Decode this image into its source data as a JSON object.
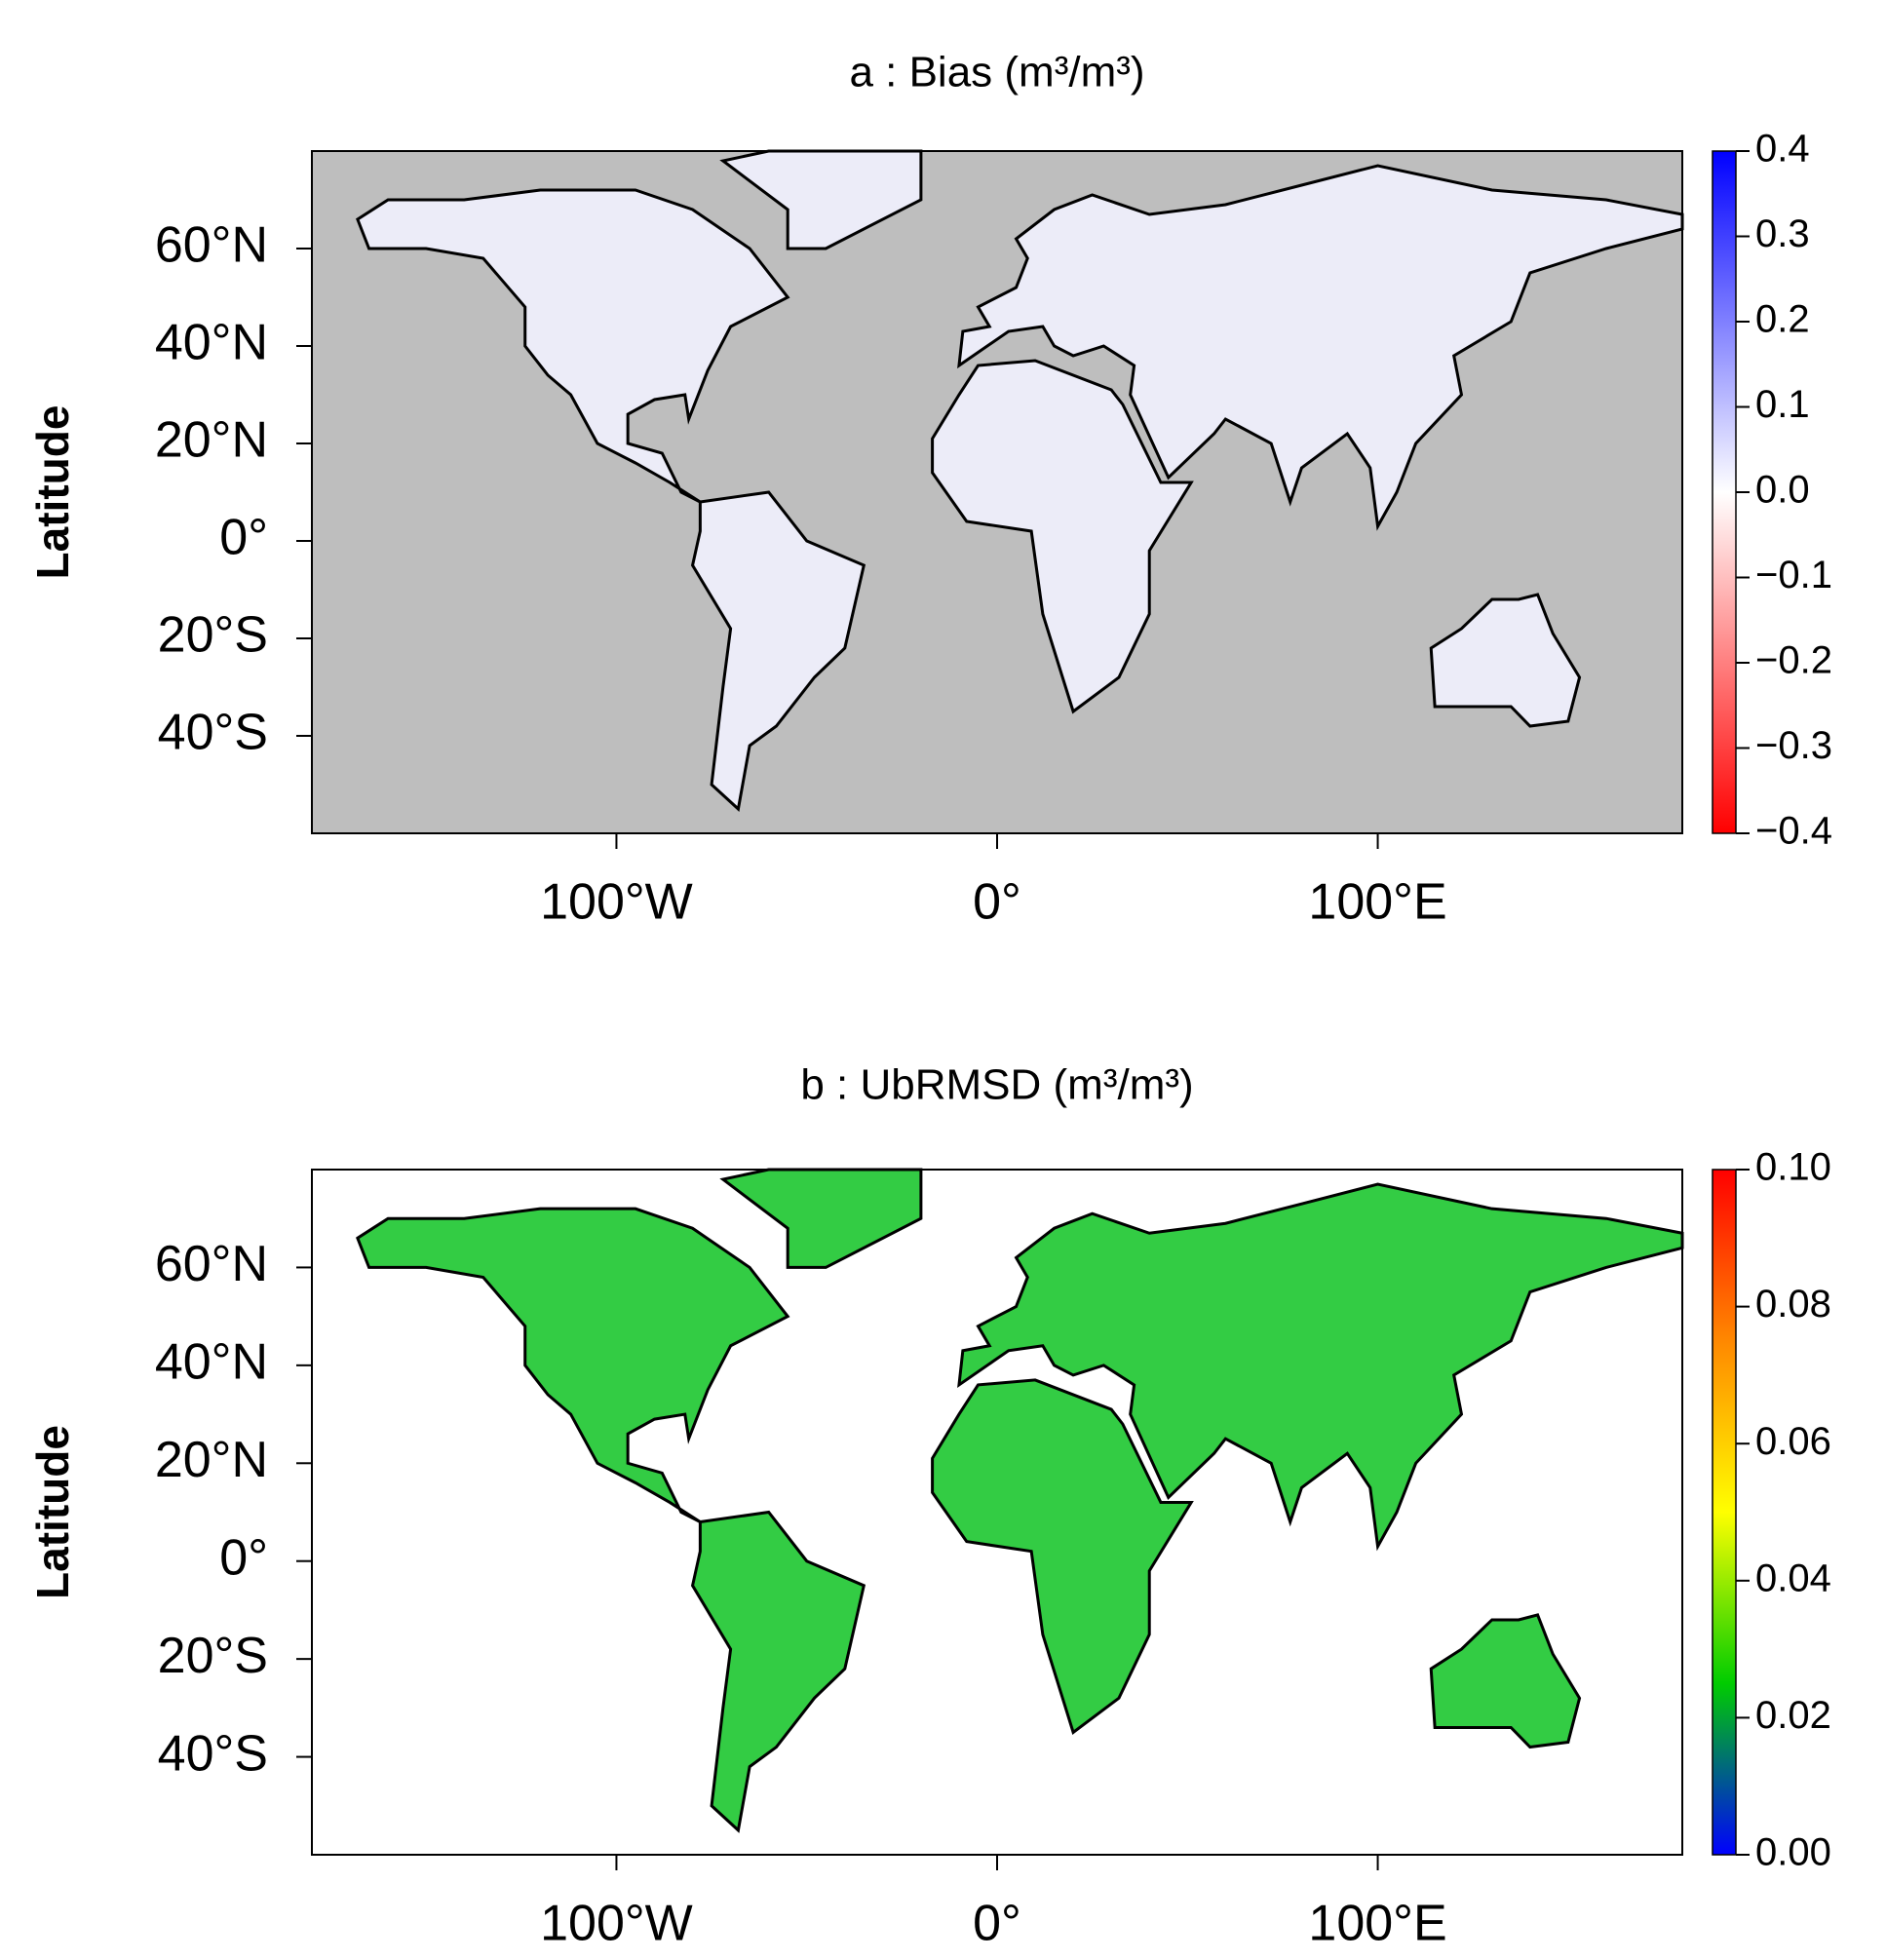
{
  "chart_data": [
    {
      "type": "map",
      "title": "a : Bias (m³/m³)",
      "y_label": "Latitude",
      "xlim": [
        -180,
        180
      ],
      "ylim": [
        -60,
        80
      ],
      "xticks": [
        {
          "value": -100,
          "label": "100°W"
        },
        {
          "value": 0,
          "label": "0°"
        },
        {
          "value": 100,
          "label": "100°E"
        }
      ],
      "yticks": [
        {
          "value": 60,
          "label": "60°N"
        },
        {
          "value": 40,
          "label": "40°N"
        },
        {
          "value": 20,
          "label": "20°N"
        },
        {
          "value": 0,
          "label": "0°"
        },
        {
          "value": -20,
          "label": "20°S"
        },
        {
          "value": -40,
          "label": "40°S"
        }
      ],
      "background": "#bebebe",
      "colormap": [
        "#ff0000",
        "#ffffff",
        "#0000ff"
      ],
      "clim": [
        -0.4,
        0.4
      ],
      "cticks": [
        {
          "value": -0.4,
          "label": "−0.4"
        },
        {
          "value": -0.3,
          "label": "−0.3"
        },
        {
          "value": -0.2,
          "label": "−0.2"
        },
        {
          "value": -0.1,
          "label": "−0.1"
        },
        {
          "value": 0,
          "label": "0.0"
        },
        0.1,
        0.2,
        0.3,
        0.4
      ]
    },
    {
      "type": "map",
      "title": "b : UbRMSD (m³/m³)",
      "y_label": "Latitude",
      "xlim": [
        -180,
        180
      ],
      "ylim": [
        -60,
        80
      ],
      "xticks": [
        {
          "value": -100,
          "label": "100°W"
        },
        {
          "value": 0,
          "label": "0°"
        },
        {
          "value": 100,
          "label": "100°E"
        }
      ],
      "yticks": [
        {
          "value": 60,
          "label": "60°N"
        },
        {
          "value": 40,
          "label": "40°N"
        },
        {
          "value": 20,
          "label": "20°N"
        },
        {
          "value": 0,
          "label": "0°"
        },
        {
          "value": -20,
          "label": "20°S"
        },
        {
          "value": -40,
          "label": "40°S"
        }
      ],
      "background": "#ffffff",
      "colormap": [
        "#0000ff",
        "#00cc00",
        "#ffff00",
        "#ff8800",
        "#ff0000"
      ],
      "clim": [
        0,
        0.1
      ],
      "cticks": [
        {
          "value": 0,
          "label": "0.00"
        },
        {
          "value": 0.02,
          "label": "0.02"
        },
        {
          "value": 0.04,
          "label": "0.04"
        },
        {
          "value": 0.06,
          "label": "0.06"
        },
        {
          "value": 0.08,
          "label": "0.08"
        },
        {
          "value": 0.1,
          "label": "0.10"
        }
      ]
    }
  ]
}
